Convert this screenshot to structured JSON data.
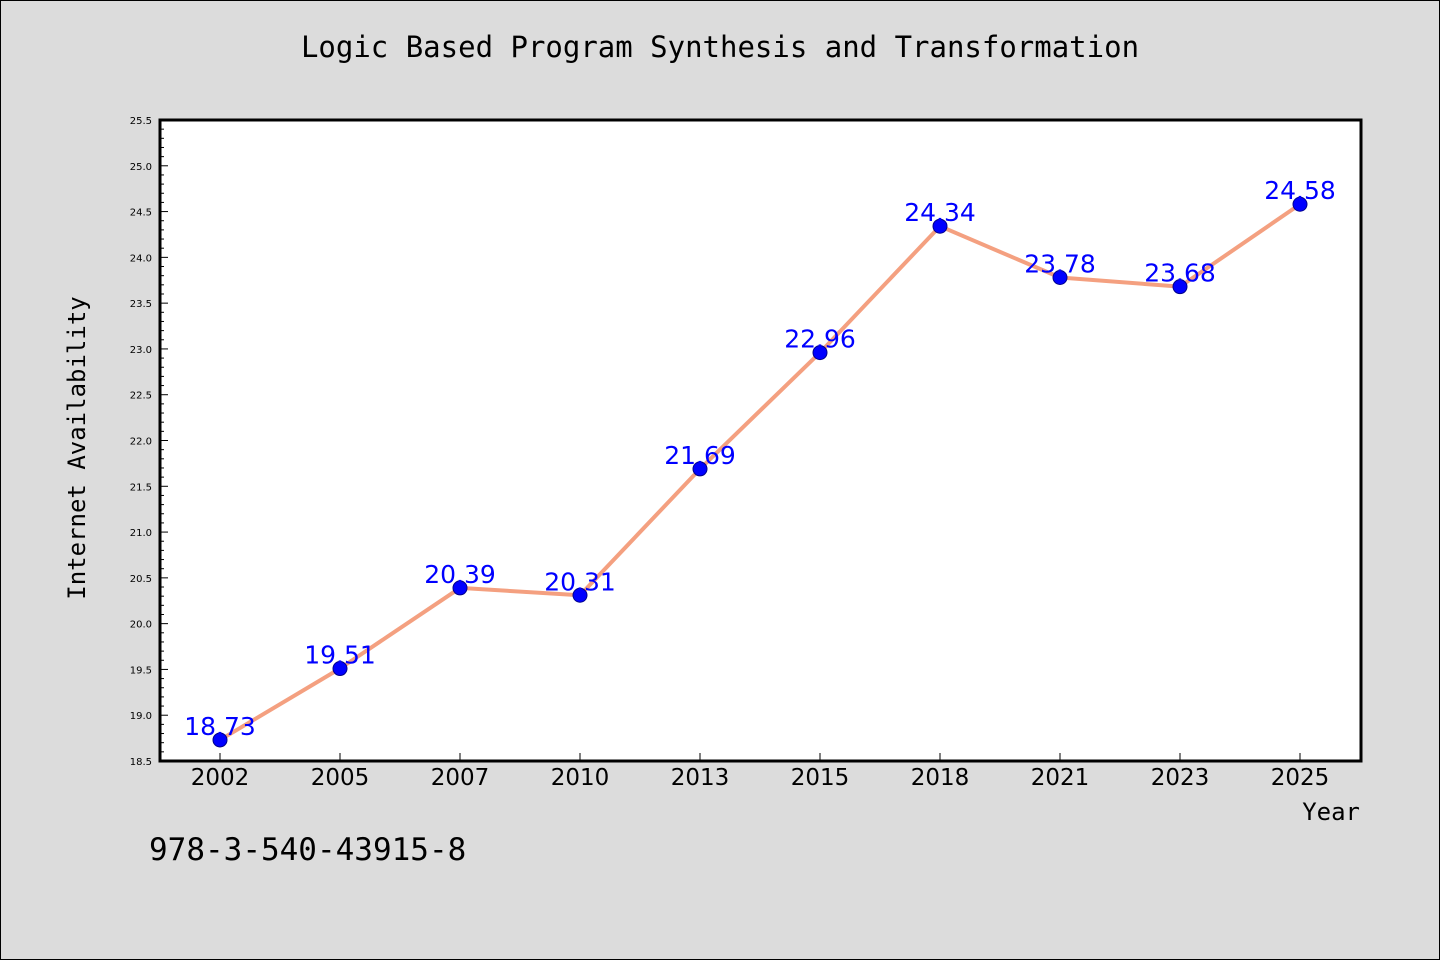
{
  "footnote": "978-3-540-43915-8",
  "colors": {
    "background": "#dcdcdc",
    "plot_background": "#ffffff",
    "line": "#f4a080",
    "marker": "#0000ff",
    "data_label": "#0000ff"
  },
  "chart_data": {
    "type": "line",
    "title": "Logic Based Program Synthesis and Transformation",
    "xlabel": "Year",
    "ylabel": "Internet Availability",
    "categories": [
      "2002",
      "2005",
      "2007",
      "2010",
      "2013",
      "2015",
      "2018",
      "2021",
      "2023",
      "2025"
    ],
    "series": [
      {
        "values": [
          18.73,
          19.51,
          20.39,
          20.31,
          21.69,
          22.96,
          24.34,
          23.78,
          23.68,
          24.58
        ],
        "labels": [
          "18.73",
          "19.51",
          "20.39",
          "20.31",
          "21.69",
          "22.96",
          "24.34",
          "23.78",
          "23.68",
          "24.58"
        ]
      }
    ],
    "ylim": [
      18.5,
      25.5
    ],
    "yticks": [
      "18.5",
      "19.0",
      "19.5",
      "20.0",
      "20.5",
      "21.0",
      "21.5",
      "22.0",
      "22.5",
      "23.0",
      "23.5",
      "24.0",
      "24.5",
      "25.0",
      "25.5"
    ],
    "grid": false,
    "legend": "none",
    "markers": "circle"
  }
}
